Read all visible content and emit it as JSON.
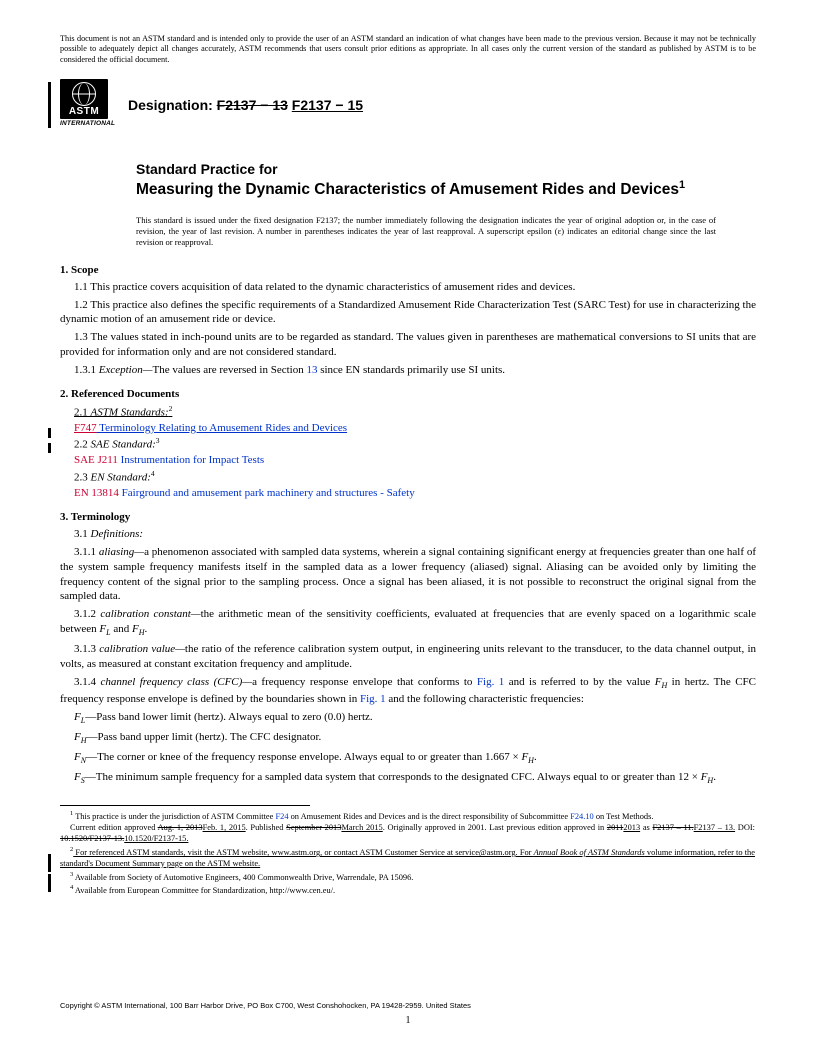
{
  "disclaimer": "This document is not an ASTM standard and is intended only to provide the user of an ASTM standard an indication of what changes have been made to the previous version. Because it may not be technically possible to adequately depict all changes accurately, ASTM recommends that users consult prior editions as appropriate. In all cases only the current version of the standard as published by ASTM is to be considered the official document.",
  "logo": {
    "abbr": "ASTM",
    "intl": "INTERNATIONAL"
  },
  "designation": {
    "label": "Designation: ",
    "old": "F2137 − 13",
    "new": "F2137 − 15"
  },
  "title": {
    "prefix": "Standard Practice for",
    "main": "Measuring the Dynamic Characteristics of Amusement Rides and Devices",
    "sup": "1"
  },
  "issued": "This standard is issued under the fixed designation F2137; the number immediately following the designation indicates the year of original adoption or, in the case of revision, the year of last revision. A number in parentheses indicates the year of last reapproval. A superscript epsilon (ε) indicates an editorial change since the last revision or reapproval.",
  "s1": {
    "head": "1. Scope",
    "p11": "1.1 This practice covers acquisition of data related to the dynamic characteristics of amusement rides and devices.",
    "p12": "1.2 This practice also defines the specific requirements of a Standardized Amusement Ride Characterization Test (SARC Test) for use in characterizing the dynamic motion of an amusement ride or device.",
    "p13": "1.3 The values stated in inch-pound units are to be regarded as standard. The values given in parentheses are mathematical conversions to SI units that are provided for information only and are not considered standard.",
    "p131a": "1.3.1 ",
    "p131b": "Exception—",
    "p131c": "The values are reversed in Section ",
    "p131d": "13",
    "p131e": " since EN standards primarily use SI units."
  },
  "s2": {
    "head": "2. Referenced Documents",
    "l21": "2.1 ",
    "l21i": "ASTM Standards:",
    "l21s": "2",
    "f747a": "F747",
    "f747b": " Terminology Relating to Amusement Rides and Devices",
    "l22": "2.2 ",
    "l22i": "SAE Standard:",
    "l22s": "3",
    "sae_a": "SAE J211",
    "sae_b": " Instrumentation for Impact Tests",
    "l23": "2.3 ",
    "l23i": "EN Standard:",
    "l23s": "4",
    "en_a": "EN 13814",
    "en_b": " Fairground and amusement park machinery and structures - Safety"
  },
  "s3": {
    "head": "3. Terminology",
    "p31": "3.1 ",
    "p31i": "Definitions:",
    "p311a": "3.1.1 ",
    "p311b": "aliasing—",
    "p311c": "a phenomenon associated with sampled data systems, wherein a signal containing significant energy at frequencies greater than one half of the system sample frequency manifests itself in the sampled data as a lower frequency (aliased) signal. Aliasing can be avoided only by limiting the frequency content of the signal prior to the sampling process. Once a signal has been aliased, it is not possible to reconstruct the original signal from the sampled data.",
    "p312a": "3.1.2 ",
    "p312b": "calibration constant—",
    "p312c": "the arithmetic mean of the sensitivity coefficients, evaluated at frequencies that are evenly spaced on a logarithmic scale between ",
    "p312d": " and ",
    "p312e": ".",
    "p313a": "3.1.3 ",
    "p313b": "calibration value—",
    "p313c": "the ratio of the reference calibration system output, in engineering units relevant to the transducer, to the data channel output, in volts, as measured at constant excitation frequency and amplitude.",
    "p314a": "3.1.4 ",
    "p314b": "channel frequency class (CFC)—",
    "p314c": "a frequency response envelope that conforms to ",
    "p314d": "Fig. 1",
    "p314e": " and is referred to by the value ",
    "p314f": " in hertz. The CFC frequency response envelope is defined by the boundaries shown in ",
    "p314g": "Fig. 1",
    "p314h": " and the following characteristic frequencies:",
    "fl": "—Pass band lower limit (hertz). Always equal to zero (0.0) hertz.",
    "fh": "—Pass band upper limit (hertz). The CFC designator.",
    "fn": "—The corner or knee of the frequency response envelope. Always equal to or greater than 1.667 × ",
    "fn2": ".",
    "fs": "—The minimum sample frequency for a sampled data system that corresponds to the designated CFC. Always equal to or greater than 12 × ",
    "fs2": "."
  },
  "footnotes": {
    "f1a": " This practice is under the jurisdiction of ASTM Committee ",
    "f1b": "F24",
    "f1c": " on Amusement Rides and Devices and is the direct responsibility of Subcommittee ",
    "f1d": "F24.10",
    "f1e": " on Test Methods.",
    "f1_2a": "Current edition approved ",
    "f1_2b": "Aug. 1, 2013",
    "f1_2c": "Feb. 1, 2015",
    "f1_2d": ". Published ",
    "f1_2e": "September 2013",
    "f1_2f": "March 2015",
    "f1_2g": ". Originally approved in 2001. Last previous edition approved in ",
    "f1_2h": "2011",
    "f1_2i": "2013",
    "f1_2j": " as ",
    "f1_2k": "F2137 – 11.",
    "f1_2l": "F2137 – 13.",
    "f1_2m": " DOI: ",
    "f1_2n": "10.1520/F2137-13.",
    "f1_2o": "10.1520/F2137-15.",
    "f2a": " For referenced ASTM standards, visit the ASTM website, www.astm.org, or contact ASTM Customer Service at service@astm.org. For ",
    "f2b": "Annual Book of ASTM Standards",
    "f2c": " volume information, refer to the standard's Document Summary page on the ASTM website.",
    "f3": " Available from Society of Automotive Engineers, 400 Commonwealth Drive, Warrendale, PA 15096.",
    "f4": " Available from European Committee for Standardization, http://www.cen.eu/."
  },
  "copyright": "Copyright © ASTM International, 100 Barr Harbor Drive, PO Box C700, West Conshohocken, PA 19428-2959. United States",
  "pagenum": "1",
  "sym": {
    "FL": "F",
    "L": "L",
    "FH": "F",
    "H": "H",
    "FN": "F",
    "N": "N",
    "FS": "F",
    "S": "S"
  }
}
